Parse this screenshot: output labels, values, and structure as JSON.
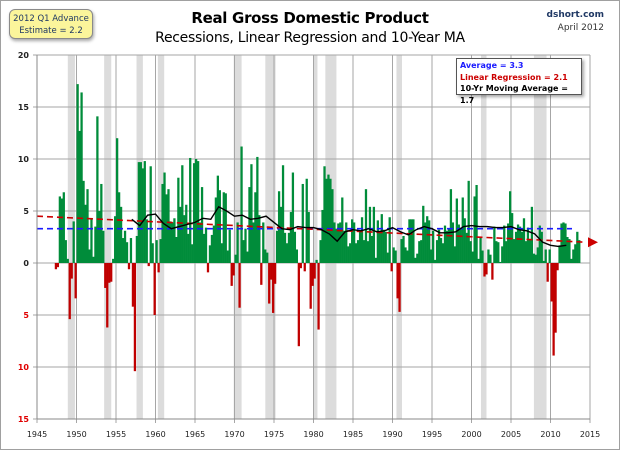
{
  "header": {
    "title": "Real Gross Domestic Product",
    "subtitle": "Recessions, Linear Regression and 10-Year MA",
    "source": "dshort.com",
    "date": "April 2012",
    "estimate_line1": "2012 Q1 Advance",
    "estimate_line2": "Estimate = 2.2"
  },
  "legend": {
    "average": "Average = 3.3",
    "linear_regression": "Linear Regression = 2.1",
    "moving_average": "10-Yr Moving Average = 1.7"
  },
  "colors": {
    "positive_bar": "#008c3a",
    "negative_bar": "#c00000",
    "recession_band": "#dcdcdc",
    "average_line": "#1a1aff",
    "regression_line": "#cc0000",
    "moving_average_line": "#000000",
    "grid": "#a6a6a6",
    "negative_tick": "#e00000"
  },
  "chart_data": {
    "type": "bar",
    "title": "Real Gross Domestic Product",
    "subtitle": "Recessions, Linear Regression and 10-Year MA",
    "xlabel": "",
    "ylabel": "",
    "xlim": [
      1945,
      2015
    ],
    "ylim": [
      -15,
      20
    ],
    "grid": true,
    "x_ticks": [
      "1945",
      "1950",
      "1955",
      "1960",
      "1965",
      "1970",
      "1975",
      "1980",
      "1985",
      "1990",
      "1995",
      "2000",
      "2005",
      "2010",
      "2015"
    ],
    "y_ticks": [
      {
        "value": 20,
        "label": "20"
      },
      {
        "value": 15,
        "label": "15"
      },
      {
        "value": 10,
        "label": "10"
      },
      {
        "value": 5,
        "label": "5"
      },
      {
        "value": 0,
        "label": "0"
      },
      {
        "value": -5,
        "label": "5"
      },
      {
        "value": -10,
        "label": "10"
      },
      {
        "value": -15,
        "label": "15"
      }
    ],
    "series_start": 1947.25,
    "series_step": 0.25,
    "series": [
      {
        "name": "Real GDP quarterly growth (annualized %)",
        "values": [
          -0.6,
          -0.4,
          6.4,
          6.2,
          6.8,
          2.2,
          0.4,
          -5.4,
          -1.5,
          4.0,
          -3.4,
          17.2,
          12.7,
          16.4,
          7.9,
          5.6,
          7.1,
          1.3,
          4.3,
          0.6,
          3.5,
          14.1,
          5.0,
          7.6,
          3.1,
          -2.4,
          -6.2,
          -1.9,
          -1.8,
          0.4,
          4.5,
          12.0,
          6.8,
          5.4,
          2.4,
          3.1,
          2.0,
          -0.6,
          2.4,
          -4.2,
          -10.4,
          2.6,
          9.7,
          9.7,
          9.1,
          9.8,
          4.2,
          -0.3,
          9.3,
          1.9,
          -5.0,
          2.2,
          -0.9,
          2.3,
          7.6,
          8.7,
          6.6,
          7.1,
          4.0,
          3.9,
          4.3,
          2.5,
          8.2,
          5.4,
          9.4,
          4.6,
          5.6,
          2.8,
          10.1,
          1.8,
          9.6,
          10.0,
          9.8,
          3.9,
          7.3,
          2.8,
          3.4,
          -0.9,
          1.7,
          2.7,
          3.6,
          6.3,
          8.4,
          7.0,
          1.9,
          6.8,
          6.7,
          1.2,
          3.2,
          -2.2,
          -1.2,
          0.8,
          3.9,
          -4.3,
          11.2,
          2.2,
          3.3,
          1.1,
          7.3,
          9.5,
          3.9,
          6.8,
          10.2,
          4.6,
          -2.1,
          3.9,
          1.3,
          1.0,
          -3.9,
          -1.6,
          -4.8,
          -2.0,
          3.1,
          6.9,
          5.4,
          9.4,
          2.9,
          1.9,
          2.9,
          4.9,
          8.7,
          3.0,
          1.3,
          -8.0,
          -0.5,
          7.6,
          -0.8,
          8.1,
          4.9,
          -4.4,
          -2.2,
          -1.5,
          0.3,
          -6.4,
          2.2,
          5.1,
          9.3,
          8.1,
          8.5,
          8.1,
          7.1,
          3.9,
          3.3,
          3.8,
          3.9,
          6.3,
          3.1,
          3.9,
          1.6,
          1.9,
          4.2,
          3.9,
          1.9,
          2.2,
          3.0,
          4.4,
          2.2,
          7.1,
          2.1,
          5.4,
          2.6,
          5.4,
          0.5,
          4.1,
          3.0,
          4.7,
          3.2,
          3.0,
          1.0,
          4.4,
          -0.8,
          1.5,
          1.2,
          -3.4,
          -4.7,
          2.3,
          2.6,
          1.5,
          1.2,
          4.2,
          4.2,
          4.2,
          0.5,
          0.9,
          2.1,
          2.2,
          5.5,
          3.9,
          4.5,
          4.1,
          1.3,
          3.1,
          0.3,
          2.2,
          3.2,
          2.4,
          1.9,
          3.6,
          3.1,
          3.3,
          7.1,
          3.9,
          1.6,
          6.2,
          3.7,
          3.4,
          6.3,
          4.3,
          2.9,
          7.9,
          2.1,
          1.1,
          6.4,
          7.5,
          0.4,
          2.5,
          1.2,
          -1.3,
          -1.1,
          1.3,
          0.8,
          -1.6,
          3.5,
          2.1,
          2.0,
          0.1,
          1.6,
          3.6,
          2.1,
          3.8,
          6.9,
          4.8,
          2.3,
          3.0,
          3.7,
          3.5,
          3.0,
          4.3,
          2.1,
          3.4,
          2.3,
          5.4,
          0.9,
          0.8,
          1.5,
          3.6,
          3.0,
          0.2,
          1.3,
          -1.8,
          1.3,
          -3.7,
          -8.9,
          -6.7,
          -0.7,
          1.7,
          3.8,
          3.9,
          3.8,
          2.5,
          2.3,
          0.4,
          1.3,
          1.8,
          3.0,
          2.2
        ]
      }
    ],
    "recessions": [
      [
        1948.9,
        1949.8
      ],
      [
        1953.5,
        1954.4
      ],
      [
        1957.6,
        1958.4
      ],
      [
        1960.3,
        1961.1
      ],
      [
        1969.9,
        1970.9
      ],
      [
        1973.9,
        1975.2
      ],
      [
        1980.0,
        1980.5
      ],
      [
        1981.5,
        1982.9
      ],
      [
        1990.5,
        1991.2
      ],
      [
        2001.2,
        2001.9
      ],
      [
        2007.9,
        2009.5
      ]
    ],
    "average": 3.3,
    "linear_regression": {
      "start_year": 1945,
      "start_value": 4.5,
      "end_year": 2015,
      "end_value": 2.0,
      "label_value": 2.1
    },
    "moving_average_10yr": {
      "x": [
        1957,
        1958,
        1959,
        1960,
        1961,
        1962,
        1963,
        1964,
        1965,
        1966,
        1967,
        1968,
        1969,
        1970,
        1971,
        1972,
        1973,
        1974,
        1975,
        1976,
        1977,
        1978,
        1979,
        1980,
        1981,
        1982,
        1983,
        1984,
        1985,
        1986,
        1987,
        1988,
        1989,
        1990,
        1991,
        1992,
        1993,
        1994,
        1995,
        1996,
        1997,
        1998,
        1999,
        2000,
        2001,
        2002,
        2003,
        2004,
        2005,
        2006,
        2007,
        2008,
        2009,
        2010,
        2011,
        2012
      ],
      "values": [
        4.2,
        3.6,
        4.6,
        4.7,
        3.8,
        3.3,
        3.5,
        3.7,
        3.9,
        4.3,
        4.2,
        5.4,
        5.0,
        4.5,
        4.6,
        4.2,
        4.3,
        4.5,
        3.9,
        3.3,
        3.2,
        3.5,
        3.4,
        3.4,
        3.2,
        2.8,
        2.1,
        3.0,
        3.2,
        3.1,
        3.3,
        3.0,
        3.1,
        3.4,
        3.0,
        2.7,
        3.2,
        3.5,
        3.3,
        2.9,
        2.9,
        3.0,
        3.5,
        3.6,
        3.5,
        3.5,
        3.4,
        3.4,
        3.5,
        3.2,
        3.1,
        2.8,
        2.0,
        1.7,
        1.6,
        1.7
      ]
    }
  }
}
